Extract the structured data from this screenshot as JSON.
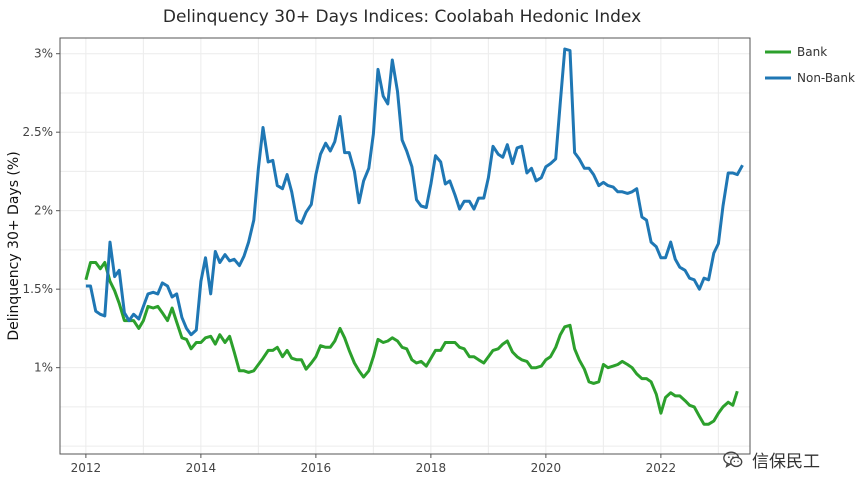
{
  "chart_data": {
    "type": "line",
    "title": "Delinquency 30+ Days Indices: Coolabah Hedonic Index",
    "xlabel": "",
    "ylabel": "Delinquency 30+ Days (%)",
    "xlim": [
      2011.55,
      2023.55
    ],
    "ylim": [
      0.45,
      3.1
    ],
    "xticks": [
      2012,
      2014,
      2016,
      2018,
      2020,
      2022
    ],
    "yticks": [
      {
        "value": 1.0,
        "label": "1%"
      },
      {
        "value": 1.5,
        "label": "1.5%"
      },
      {
        "value": 2.0,
        "label": "2%"
      },
      {
        "value": 2.5,
        "label": "2.5%"
      },
      {
        "value": 3.0,
        "label": "3%"
      }
    ],
    "grid": true,
    "legend_position": "top-right",
    "series": [
      {
        "name": "Bank",
        "color": "#2ca02c",
        "points": [
          [
            2012.0,
            1.56
          ],
          [
            2012.08,
            1.67
          ],
          [
            2012.17,
            1.67
          ],
          [
            2012.25,
            1.63
          ],
          [
            2012.33,
            1.67
          ],
          [
            2012.42,
            1.55
          ],
          [
            2012.5,
            1.49
          ],
          [
            2012.58,
            1.41
          ],
          [
            2012.67,
            1.3
          ],
          [
            2012.75,
            1.3
          ],
          [
            2012.83,
            1.3
          ],
          [
            2012.92,
            1.25
          ],
          [
            2013.0,
            1.3
          ],
          [
            2013.08,
            1.39
          ],
          [
            2013.17,
            1.38
          ],
          [
            2013.25,
            1.39
          ],
          [
            2013.33,
            1.35
          ],
          [
            2013.42,
            1.3
          ],
          [
            2013.5,
            1.38
          ],
          [
            2013.58,
            1.29
          ],
          [
            2013.67,
            1.19
          ],
          [
            2013.75,
            1.18
          ],
          [
            2013.83,
            1.12
          ],
          [
            2013.92,
            1.16
          ],
          [
            2014.0,
            1.16
          ],
          [
            2014.08,
            1.19
          ],
          [
            2014.17,
            1.2
          ],
          [
            2014.25,
            1.15
          ],
          [
            2014.33,
            1.21
          ],
          [
            2014.42,
            1.16
          ],
          [
            2014.5,
            1.2
          ],
          [
            2014.58,
            1.1
          ],
          [
            2014.67,
            0.98
          ],
          [
            2014.75,
            0.98
          ],
          [
            2014.83,
            0.97
          ],
          [
            2014.92,
            0.98
          ],
          [
            2015.0,
            1.02
          ],
          [
            2015.08,
            1.06
          ],
          [
            2015.17,
            1.11
          ],
          [
            2015.25,
            1.11
          ],
          [
            2015.33,
            1.13
          ],
          [
            2015.42,
            1.07
          ],
          [
            2015.5,
            1.11
          ],
          [
            2015.58,
            1.06
          ],
          [
            2015.67,
            1.05
          ],
          [
            2015.75,
            1.05
          ],
          [
            2015.83,
            0.99
          ],
          [
            2015.92,
            1.03
          ],
          [
            2016.0,
            1.07
          ],
          [
            2016.08,
            1.14
          ],
          [
            2016.17,
            1.13
          ],
          [
            2016.25,
            1.13
          ],
          [
            2016.33,
            1.17
          ],
          [
            2016.42,
            1.25
          ],
          [
            2016.5,
            1.19
          ],
          [
            2016.58,
            1.11
          ],
          [
            2016.67,
            1.03
          ],
          [
            2016.75,
            0.98
          ],
          [
            2016.83,
            0.94
          ],
          [
            2016.92,
            0.98
          ],
          [
            2017.0,
            1.07
          ],
          [
            2017.08,
            1.18
          ],
          [
            2017.17,
            1.16
          ],
          [
            2017.25,
            1.17
          ],
          [
            2017.33,
            1.19
          ],
          [
            2017.42,
            1.17
          ],
          [
            2017.5,
            1.13
          ],
          [
            2017.58,
            1.12
          ],
          [
            2017.67,
            1.05
          ],
          [
            2017.75,
            1.03
          ],
          [
            2017.83,
            1.04
          ],
          [
            2017.92,
            1.01
          ],
          [
            2018.0,
            1.06
          ],
          [
            2018.08,
            1.11
          ],
          [
            2018.17,
            1.11
          ],
          [
            2018.25,
            1.16
          ],
          [
            2018.33,
            1.16
          ],
          [
            2018.42,
            1.16
          ],
          [
            2018.5,
            1.13
          ],
          [
            2018.58,
            1.12
          ],
          [
            2018.67,
            1.07
          ],
          [
            2018.75,
            1.07
          ],
          [
            2018.83,
            1.05
          ],
          [
            2018.92,
            1.03
          ],
          [
            2019.0,
            1.07
          ],
          [
            2019.08,
            1.11
          ],
          [
            2019.17,
            1.12
          ],
          [
            2019.25,
            1.15
          ],
          [
            2019.33,
            1.17
          ],
          [
            2019.42,
            1.1
          ],
          [
            2019.5,
            1.07
          ],
          [
            2019.58,
            1.05
          ],
          [
            2019.67,
            1.04
          ],
          [
            2019.75,
            1.0
          ],
          [
            2019.83,
            1.0
          ],
          [
            2019.92,
            1.01
          ],
          [
            2020.0,
            1.05
          ],
          [
            2020.08,
            1.07
          ],
          [
            2020.17,
            1.13
          ],
          [
            2020.25,
            1.21
          ],
          [
            2020.33,
            1.26
          ],
          [
            2020.42,
            1.27
          ],
          [
            2020.5,
            1.12
          ],
          [
            2020.58,
            1.05
          ],
          [
            2020.67,
            0.99
          ],
          [
            2020.75,
            0.91
          ],
          [
            2020.83,
            0.9
          ],
          [
            2020.92,
            0.91
          ],
          [
            2021.0,
            1.02
          ],
          [
            2021.08,
            1.0
          ],
          [
            2021.17,
            1.01
          ],
          [
            2021.25,
            1.02
          ],
          [
            2021.33,
            1.04
          ],
          [
            2021.42,
            1.02
          ],
          [
            2021.5,
            1.0
          ],
          [
            2021.58,
            0.96
          ],
          [
            2021.67,
            0.93
          ],
          [
            2021.75,
            0.93
          ],
          [
            2021.83,
            0.91
          ],
          [
            2021.92,
            0.83
          ],
          [
            2022.0,
            0.71
          ],
          [
            2022.08,
            0.81
          ],
          [
            2022.17,
            0.84
          ],
          [
            2022.25,
            0.82
          ],
          [
            2022.33,
            0.82
          ],
          [
            2022.42,
            0.79
          ],
          [
            2022.5,
            0.76
          ],
          [
            2022.58,
            0.75
          ],
          [
            2022.67,
            0.69
          ],
          [
            2022.75,
            0.64
          ],
          [
            2022.83,
            0.64
          ],
          [
            2022.92,
            0.66
          ],
          [
            2023.0,
            0.71
          ],
          [
            2023.08,
            0.75
          ],
          [
            2023.17,
            0.78
          ],
          [
            2023.25,
            0.76
          ],
          [
            2023.33,
            0.85
          ]
        ]
      },
      {
        "name": "Non-Bank",
        "color": "#1f77b4",
        "points": [
          [
            2012.0,
            1.52
          ],
          [
            2012.08,
            1.52
          ],
          [
            2012.17,
            1.36
          ],
          [
            2012.25,
            1.34
          ],
          [
            2012.33,
            1.33
          ],
          [
            2012.42,
            1.8
          ],
          [
            2012.5,
            1.58
          ],
          [
            2012.58,
            1.62
          ],
          [
            2012.67,
            1.35
          ],
          [
            2012.75,
            1.3
          ],
          [
            2012.83,
            1.34
          ],
          [
            2012.92,
            1.31
          ],
          [
            2013.0,
            1.39
          ],
          [
            2013.08,
            1.47
          ],
          [
            2013.17,
            1.48
          ],
          [
            2013.25,
            1.47
          ],
          [
            2013.33,
            1.54
          ],
          [
            2013.42,
            1.52
          ],
          [
            2013.5,
            1.45
          ],
          [
            2013.58,
            1.47
          ],
          [
            2013.67,
            1.32
          ],
          [
            2013.75,
            1.25
          ],
          [
            2013.83,
            1.21
          ],
          [
            2013.92,
            1.24
          ],
          [
            2014.0,
            1.55
          ],
          [
            2014.08,
            1.7
          ],
          [
            2014.17,
            1.47
          ],
          [
            2014.25,
            1.74
          ],
          [
            2014.33,
            1.67
          ],
          [
            2014.42,
            1.72
          ],
          [
            2014.5,
            1.68
          ],
          [
            2014.58,
            1.69
          ],
          [
            2014.67,
            1.65
          ],
          [
            2014.75,
            1.71
          ],
          [
            2014.83,
            1.8
          ],
          [
            2014.92,
            1.94
          ],
          [
            2015.0,
            2.27
          ],
          [
            2015.08,
            2.53
          ],
          [
            2015.17,
            2.31
          ],
          [
            2015.25,
            2.32
          ],
          [
            2015.33,
            2.16
          ],
          [
            2015.42,
            2.14
          ],
          [
            2015.5,
            2.23
          ],
          [
            2015.58,
            2.12
          ],
          [
            2015.67,
            1.94
          ],
          [
            2015.75,
            1.92
          ],
          [
            2015.83,
            1.99
          ],
          [
            2015.92,
            2.04
          ],
          [
            2016.0,
            2.23
          ],
          [
            2016.08,
            2.36
          ],
          [
            2016.17,
            2.43
          ],
          [
            2016.25,
            2.38
          ],
          [
            2016.33,
            2.44
          ],
          [
            2016.42,
            2.6
          ],
          [
            2016.5,
            2.37
          ],
          [
            2016.58,
            2.37
          ],
          [
            2016.67,
            2.25
          ],
          [
            2016.75,
            2.05
          ],
          [
            2016.83,
            2.19
          ],
          [
            2016.92,
            2.27
          ],
          [
            2017.0,
            2.49
          ],
          [
            2017.08,
            2.9
          ],
          [
            2017.17,
            2.73
          ],
          [
            2017.25,
            2.68
          ],
          [
            2017.33,
            2.96
          ],
          [
            2017.42,
            2.76
          ],
          [
            2017.5,
            2.45
          ],
          [
            2017.58,
            2.38
          ],
          [
            2017.67,
            2.28
          ],
          [
            2017.75,
            2.07
          ],
          [
            2017.83,
            2.03
          ],
          [
            2017.92,
            2.02
          ],
          [
            2018.0,
            2.17
          ],
          [
            2018.08,
            2.35
          ],
          [
            2018.17,
            2.31
          ],
          [
            2018.25,
            2.17
          ],
          [
            2018.33,
            2.19
          ],
          [
            2018.42,
            2.1
          ],
          [
            2018.5,
            2.01
          ],
          [
            2018.58,
            2.06
          ],
          [
            2018.67,
            2.06
          ],
          [
            2018.75,
            2.01
          ],
          [
            2018.83,
            2.08
          ],
          [
            2018.92,
            2.08
          ],
          [
            2019.0,
            2.21
          ],
          [
            2019.08,
            2.41
          ],
          [
            2019.17,
            2.36
          ],
          [
            2019.25,
            2.34
          ],
          [
            2019.33,
            2.42
          ],
          [
            2019.42,
            2.3
          ],
          [
            2019.5,
            2.4
          ],
          [
            2019.58,
            2.41
          ],
          [
            2019.67,
            2.24
          ],
          [
            2019.75,
            2.27
          ],
          [
            2019.83,
            2.19
          ],
          [
            2019.92,
            2.21
          ],
          [
            2020.0,
            2.28
          ],
          [
            2020.08,
            2.3
          ],
          [
            2020.17,
            2.33
          ],
          [
            2020.25,
            2.69
          ],
          [
            2020.33,
            3.03
          ],
          [
            2020.42,
            3.02
          ],
          [
            2020.5,
            2.37
          ],
          [
            2020.58,
            2.33
          ],
          [
            2020.67,
            2.27
          ],
          [
            2020.75,
            2.27
          ],
          [
            2020.83,
            2.23
          ],
          [
            2020.92,
            2.16
          ],
          [
            2021.0,
            2.18
          ],
          [
            2021.08,
            2.16
          ],
          [
            2021.17,
            2.15
          ],
          [
            2021.25,
            2.12
          ],
          [
            2021.33,
            2.12
          ],
          [
            2021.42,
            2.11
          ],
          [
            2021.5,
            2.12
          ],
          [
            2021.58,
            2.14
          ],
          [
            2021.67,
            1.96
          ],
          [
            2021.75,
            1.94
          ],
          [
            2021.83,
            1.8
          ],
          [
            2021.92,
            1.77
          ],
          [
            2022.0,
            1.7
          ],
          [
            2022.08,
            1.7
          ],
          [
            2022.17,
            1.8
          ],
          [
            2022.25,
            1.69
          ],
          [
            2022.33,
            1.64
          ],
          [
            2022.42,
            1.62
          ],
          [
            2022.5,
            1.57
          ],
          [
            2022.58,
            1.56
          ],
          [
            2022.67,
            1.5
          ],
          [
            2022.75,
            1.57
          ],
          [
            2022.83,
            1.56
          ],
          [
            2022.92,
            1.73
          ],
          [
            2023.0,
            1.79
          ],
          [
            2023.08,
            2.03
          ],
          [
            2023.17,
            2.24
          ],
          [
            2023.25,
            2.24
          ],
          [
            2023.33,
            2.23
          ],
          [
            2023.42,
            2.29
          ]
        ]
      }
    ]
  },
  "watermark": {
    "text": "信保民工",
    "icon": "wechat-logo-icon"
  }
}
